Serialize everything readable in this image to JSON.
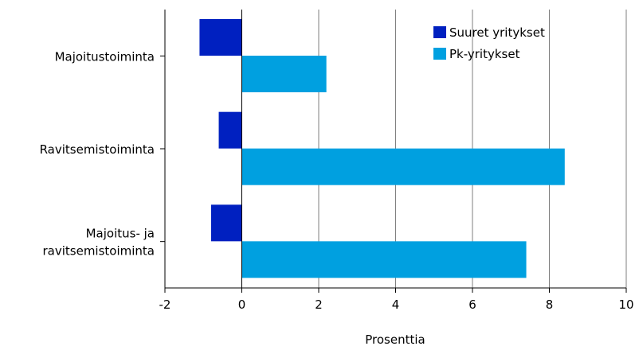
{
  "chart_data": {
    "type": "bar",
    "orientation": "horizontal",
    "categories": [
      [
        "Majoitustoiminta"
      ],
      [
        "Ravitsemistoiminta"
      ],
      [
        "Majoitus- ja",
        "ravitsemistoiminta"
      ]
    ],
    "series": [
      {
        "name": "Suuret yritykset",
        "color": "#0020c0",
        "values": [
          -1.1,
          -0.6,
          -0.8
        ]
      },
      {
        "name": "Pk-yritykset",
        "color": "#00a0e0",
        "values": [
          2.2,
          8.4,
          7.4
        ]
      }
    ],
    "xlabel": "Prosenttia",
    "ylabel": "",
    "title": "",
    "xlim": [
      -2,
      10
    ],
    "xticks": [
      -2,
      0,
      2,
      4,
      6,
      8,
      10
    ],
    "grid": "vertical",
    "legend_position": "top-right"
  }
}
